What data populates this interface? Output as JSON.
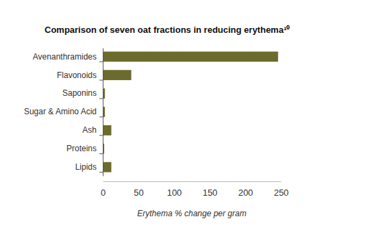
{
  "chart_data": {
    "type": "bar",
    "orientation": "horizontal",
    "title": "Comparison of seven oat fractions in reducing erythema¹⁰",
    "x_label": "Erythema % change per gram",
    "categories": [
      "Avenanthramides",
      "Flavonoids",
      "Saponins",
      "Sugar & Amino Acid",
      "Ash",
      "Proteins",
      "Lipids"
    ],
    "values": [
      246,
      40,
      3,
      3,
      12,
      2,
      12
    ],
    "color": "#6b6b2c",
    "xlim": [
      0,
      250
    ],
    "xticks": [
      0,
      50,
      100,
      150,
      200,
      250
    ],
    "grid": false
  }
}
